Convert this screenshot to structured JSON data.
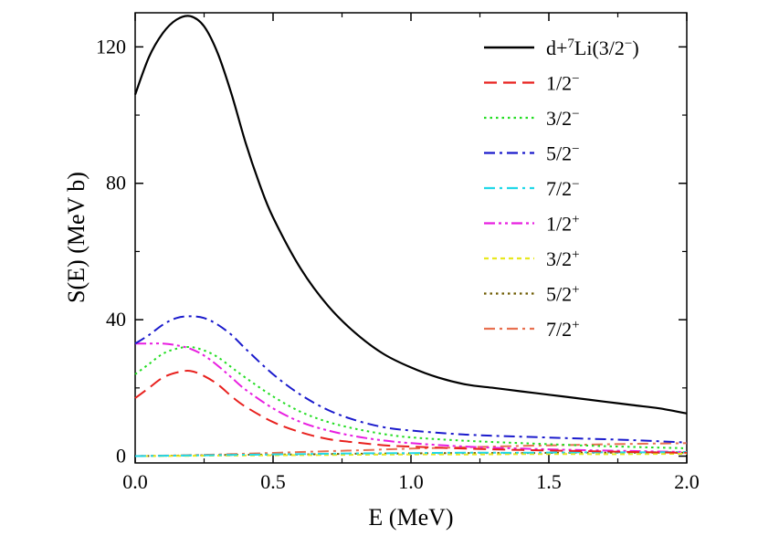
{
  "chart_data": {
    "type": "line",
    "title": "",
    "xlabel": "E (MeV)",
    "ylabel": "S(E) (MeV b)",
    "xlim": [
      0.0,
      2.0
    ],
    "ylim": [
      -2,
      130
    ],
    "xticks": [
      0.0,
      0.5,
      1.0,
      1.5,
      2.0
    ],
    "xtick_labels": [
      "0.0",
      "0.5",
      "1.0",
      "1.5",
      "2.0"
    ],
    "yticks": [
      0,
      40,
      80,
      120
    ],
    "ytick_labels": [
      "0",
      "40",
      "80",
      "120"
    ],
    "legend_position": "top-right",
    "series": [
      {
        "name": "d+7Li(3/2−)",
        "legend": {
          "base": "d+",
          "sup1": "7",
          "mid": "Li(3/2",
          "sup2": "−",
          "tail": ")"
        },
        "color": "#000000",
        "dash": "solid",
        "x": [
          0.0,
          0.05,
          0.1,
          0.15,
          0.2,
          0.25,
          0.3,
          0.35,
          0.4,
          0.45,
          0.5,
          0.6,
          0.7,
          0.8,
          0.9,
          1.0,
          1.1,
          1.2,
          1.3,
          1.4,
          1.5,
          1.6,
          1.7,
          1.8,
          1.9,
          2.0
        ],
        "y": [
          106,
          117,
          124,
          128,
          129,
          126,
          118,
          106,
          92,
          80,
          70,
          55,
          44,
          36,
          30,
          26,
          23,
          21,
          20,
          19,
          18,
          17,
          16,
          15,
          14,
          12.5
        ]
      },
      {
        "name": "1/2−",
        "legend": {
          "base": "1/2",
          "sup": "−"
        },
        "color": "#e8211e",
        "dash": "dashed",
        "x": [
          0.0,
          0.05,
          0.1,
          0.15,
          0.2,
          0.25,
          0.3,
          0.35,
          0.4,
          0.5,
          0.6,
          0.7,
          0.8,
          0.9,
          1.0,
          1.2,
          1.4,
          1.6,
          1.8,
          2.0
        ],
        "y": [
          17,
          20,
          23,
          24.5,
          25,
          23.5,
          21,
          17.5,
          14.5,
          10,
          7,
          5,
          4,
          3.2,
          2.8,
          2.2,
          1.8,
          1.5,
          1.2,
          1
        ]
      },
      {
        "name": "3/2−",
        "legend": {
          "base": "3/2",
          "sup": "−"
        },
        "color": "#22dd22",
        "dash": "dotted",
        "x": [
          0.0,
          0.05,
          0.1,
          0.15,
          0.2,
          0.25,
          0.3,
          0.35,
          0.4,
          0.5,
          0.6,
          0.7,
          0.8,
          0.9,
          1.0,
          1.2,
          1.4,
          1.6,
          1.8,
          2.0
        ],
        "y": [
          24,
          27,
          30,
          31.5,
          32,
          31,
          29,
          26,
          23,
          17.5,
          13,
          10,
          8,
          6.5,
          5.5,
          4.5,
          3.8,
          3.2,
          2.7,
          2.3
        ]
      },
      {
        "name": "5/2−",
        "legend": {
          "base": "5/2",
          "sup": "−"
        },
        "color": "#1a1acc",
        "dash": "dashdot",
        "x": [
          0.0,
          0.05,
          0.1,
          0.15,
          0.2,
          0.25,
          0.3,
          0.35,
          0.4,
          0.5,
          0.6,
          0.7,
          0.8,
          0.9,
          1.0,
          1.2,
          1.4,
          1.6,
          1.8,
          2.0
        ],
        "y": [
          33,
          35.5,
          38.5,
          40.5,
          41,
          40.5,
          38.5,
          35.5,
          31.5,
          24,
          18,
          13.5,
          10.5,
          8.5,
          7.5,
          6.3,
          5.7,
          5.2,
          4.7,
          4
        ]
      },
      {
        "name": "7/2−",
        "legend": {
          "base": "7/2",
          "sup": "−"
        },
        "color": "#22d8e8",
        "dash": "dashdot",
        "x": [
          0.0,
          0.2,
          0.4,
          0.6,
          0.8,
          1.0,
          1.2,
          1.4,
          1.6,
          1.8,
          2.0
        ],
        "y": [
          0,
          0.2,
          0.4,
          0.6,
          0.8,
          0.9,
          1.0,
          1.0,
          1.1,
          1.1,
          1.2
        ]
      },
      {
        "name": "1/2+",
        "legend": {
          "base": "1/2",
          "sup": "+"
        },
        "color": "#e81ee0",
        "dash": "dashdotdot",
        "x": [
          0.0,
          0.05,
          0.1,
          0.15,
          0.2,
          0.25,
          0.3,
          0.35,
          0.4,
          0.5,
          0.6,
          0.7,
          0.8,
          0.9,
          1.0,
          1.2,
          1.4,
          1.6,
          1.8,
          2.0
        ],
        "y": [
          33,
          33,
          33,
          32.5,
          31.5,
          29.5,
          26.5,
          23,
          19.5,
          14,
          10,
          7.5,
          5.8,
          4.6,
          3.8,
          2.8,
          2.2,
          1.8,
          1.5,
          1.2
        ]
      },
      {
        "name": "3/2+",
        "legend": {
          "base": "3/2",
          "sup": "+"
        },
        "color": "#e8e81e",
        "dash": "shortdash",
        "x": [
          0.0,
          0.2,
          0.4,
          0.6,
          0.8,
          1.0,
          1.2,
          1.4,
          1.6,
          1.8,
          2.0
        ],
        "y": [
          0,
          0.1,
          0.2,
          0.3,
          0.4,
          0.5,
          0.5,
          0.6,
          0.6,
          0.6,
          0.7
        ]
      },
      {
        "name": "5/2+",
        "legend": {
          "base": "5/2",
          "sup": "+"
        },
        "color": "#6e5a00",
        "dash": "dotted",
        "x": [
          0.0,
          0.2,
          0.4,
          0.6,
          0.8,
          1.0,
          1.2,
          1.4,
          1.6,
          1.8,
          2.0
        ],
        "y": [
          0,
          0.2,
          0.4,
          0.5,
          0.7,
          0.8,
          0.9,
          0.9,
          1.0,
          1.0,
          1.0
        ]
      },
      {
        "name": "7/2+",
        "legend": {
          "base": "7/2",
          "sup": "+"
        },
        "color": "#e87050",
        "dash": "dashdot",
        "x": [
          0.0,
          0.2,
          0.4,
          0.6,
          0.8,
          1.0,
          1.2,
          1.4,
          1.6,
          1.8,
          2.0
        ],
        "y": [
          0,
          0.3,
          0.7,
          1.2,
          1.7,
          2.2,
          2.6,
          3.0,
          3.3,
          3.6,
          3.8
        ]
      }
    ]
  }
}
